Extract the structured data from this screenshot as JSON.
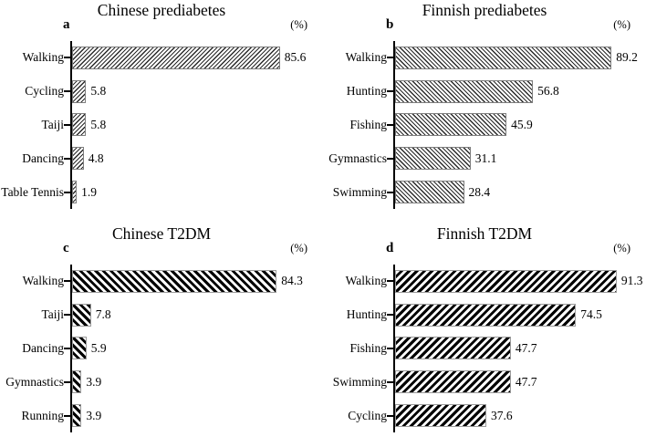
{
  "colors": {
    "background": "#ffffff",
    "text": "#000000",
    "axis": "#000000",
    "hatch_thin": "#2a2a2a",
    "hatch_thick": "#000000",
    "bar_border_thin": "#7d7d7d",
    "bar_border_thick": "#9b9b9b"
  },
  "chart_data": [
    {
      "type": "bar",
      "orientation": "horizontal",
      "panel_letter": "a",
      "title": "Chinese prediabetes",
      "unit_label": "(%)",
      "categories": [
        "Walking",
        "Cycling",
        "Taiji",
        "Dancing",
        "Table Tennis"
      ],
      "values": [
        85.6,
        5.8,
        5.8,
        4.8,
        1.9
      ],
      "value_labels": [
        "85.6",
        "5.8",
        "5.8",
        "4.8",
        "1.9"
      ],
      "hatch_pattern": "thin-diagonal-forward",
      "xlim": [
        0,
        100
      ],
      "grid": false,
      "legend": false
    },
    {
      "type": "bar",
      "orientation": "horizontal",
      "panel_letter": "b",
      "title": "Finnish prediabetes",
      "unit_label": "(%)",
      "categories": [
        "Walking",
        "Hunting",
        "Fishing",
        "Gymnastics",
        "Swimming"
      ],
      "values": [
        89.2,
        56.8,
        45.9,
        31.1,
        28.4
      ],
      "value_labels": [
        "89.2",
        "56.8",
        "45.9",
        "31.1",
        "28.4"
      ],
      "hatch_pattern": "thin-diagonal-back",
      "xlim": [
        0,
        100
      ],
      "grid": false,
      "legend": false
    },
    {
      "type": "bar",
      "orientation": "horizontal",
      "panel_letter": "c",
      "title": "Chinese T2DM",
      "unit_label": "(%)",
      "categories": [
        "Walking",
        "Taiji",
        "Dancing",
        "Gymnastics",
        "Running"
      ],
      "values": [
        84.3,
        7.8,
        5.9,
        3.9,
        3.9
      ],
      "value_labels": [
        "84.3",
        "7.8",
        "5.9",
        "3.9",
        "3.9"
      ],
      "hatch_pattern": "thick-diagonal-back",
      "xlim": [
        0,
        100
      ],
      "grid": false,
      "legend": false
    },
    {
      "type": "bar",
      "orientation": "horizontal",
      "panel_letter": "d",
      "title": "Finnish T2DM",
      "unit_label": "(%)",
      "categories": [
        "Walking",
        "Hunting",
        "Fishing",
        "Swimming",
        "Cycling"
      ],
      "values": [
        91.3,
        74.5,
        47.7,
        47.7,
        37.6
      ],
      "value_labels": [
        "91.3",
        "74.5",
        "47.7",
        "47.7",
        "37.6"
      ],
      "hatch_pattern": "thick-diagonal-forward",
      "xlim": [
        0,
        100
      ],
      "grid": false,
      "legend": false
    }
  ]
}
